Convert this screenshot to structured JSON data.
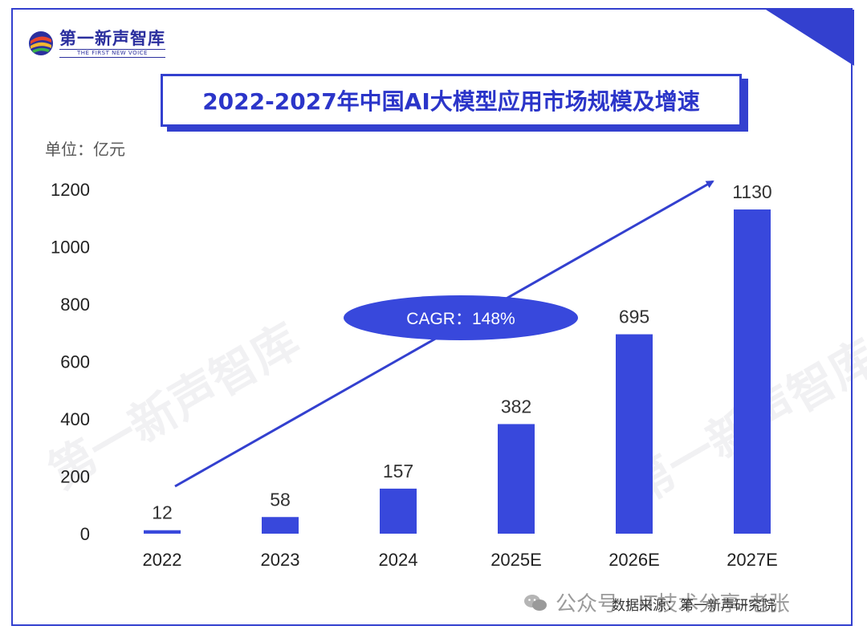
{
  "header": {
    "logo_name": "第一新声智库",
    "logo_tagline": "THE FIRST NEW VOICE",
    "title": "2022-2027年中国AI大模型应用市场规模及增速"
  },
  "unit_label": "单位：亿元",
  "cagr_label": "CAGR：148%",
  "source": "数据来源：第一新声研究院",
  "wechat_watermark": "公众号 · IT技术分享-老张",
  "watermark_text": "第一新声智库",
  "colors": {
    "accent": "#3340cf",
    "bar": "#3848dc",
    "title": "#2b35c9"
  },
  "chart_data": {
    "type": "bar",
    "title": "2022-2027年中国AI大模型应用市场规模及增速",
    "categories": [
      "2022",
      "2023",
      "2024",
      "2025E",
      "2026E",
      "2027E"
    ],
    "values": [
      12,
      58,
      157,
      382,
      695,
      1130
    ],
    "value_labels": [
      "12",
      "58",
      "157",
      "382",
      "695",
      "1130"
    ],
    "ylabel": "单位：亿元",
    "xlabel": "",
    "ylim": [
      0,
      1200
    ],
    "yticks": [
      0,
      200,
      400,
      600,
      800,
      1000,
      1200
    ],
    "ytick_labels": [
      "0",
      "200",
      "400",
      "600",
      "800",
      "1000",
      "1200"
    ],
    "grid": false,
    "annotation": "CAGR：148%"
  }
}
